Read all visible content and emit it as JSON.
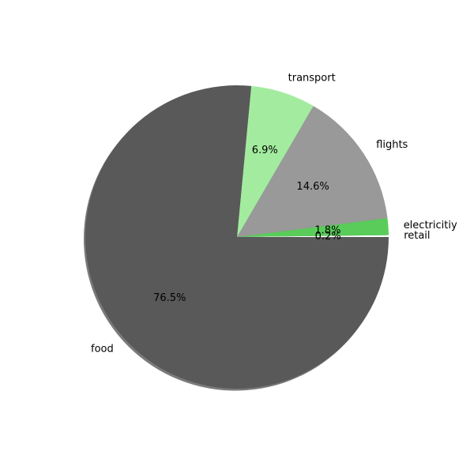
{
  "chart_data": {
    "type": "pie",
    "title": "",
    "start_angle": 0,
    "direction": "counterclockwise",
    "shadow": true,
    "slices": [
      {
        "label": "retail",
        "value": 0.2,
        "pct_label": "0.2%",
        "color": "#ffffff"
      },
      {
        "label": "electricitiy",
        "value": 1.8,
        "pct_label": "1.8%",
        "color": "#5acc5a"
      },
      {
        "label": "flights",
        "value": 14.6,
        "pct_label": "14.6%",
        "color": "#999999"
      },
      {
        "label": "transport",
        "value": 6.9,
        "pct_label": "6.9%",
        "color": "#a3ec9f"
      },
      {
        "label": "food",
        "value": 76.5,
        "pct_label": "76.5%",
        "color": "#595959"
      }
    ]
  }
}
